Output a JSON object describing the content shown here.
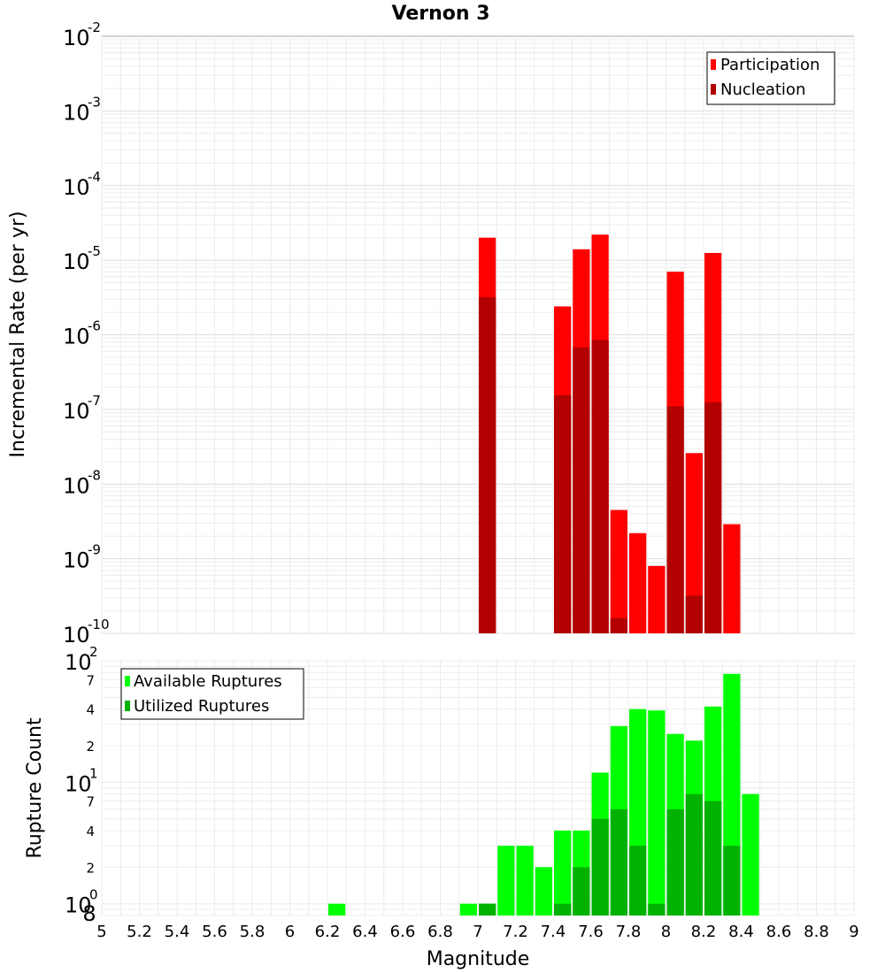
{
  "title": "Vernon 3",
  "chart_data": [
    {
      "type": "bar",
      "scale": "log",
      "ylabel": "Incremental Rate (per yr)",
      "xlim": [
        5,
        9
      ],
      "ylim": [
        1e-10,
        0.01
      ],
      "y_decade_ticks": [
        {
          "base": "10",
          "exp": "-10",
          "value": 1e-10
        },
        {
          "base": "10",
          "exp": "-9",
          "value": 1e-09
        },
        {
          "base": "10",
          "exp": "-8",
          "value": 1e-08
        },
        {
          "base": "10",
          "exp": "-7",
          "value": 1e-07
        },
        {
          "base": "10",
          "exp": "-6",
          "value": 1e-06
        },
        {
          "base": "10",
          "exp": "-5",
          "value": 1e-05
        },
        {
          "base": "10",
          "exp": "-4",
          "value": 0.0001
        },
        {
          "base": "10",
          "exp": "-3",
          "value": 0.001
        },
        {
          "base": "10",
          "exp": "-2",
          "value": 0.01
        }
      ],
      "legend": {
        "placement": "top-right",
        "entries": [
          {
            "label": "Participation",
            "color": "#ff0000"
          },
          {
            "label": "Nucleation",
            "color": "#b20000"
          }
        ]
      },
      "series": [
        {
          "name": "Participation",
          "color": "#ff0000",
          "x": [
            7.05,
            7.45,
            7.55,
            7.65,
            7.75,
            7.85,
            7.95,
            8.05,
            8.15,
            8.25,
            8.35
          ],
          "values": [
            2e-05,
            2.4e-06,
            1.4e-05,
            2.2e-05,
            4.5e-09,
            2.2e-09,
            8e-10,
            7e-06,
            2.6e-08,
            1.25e-05,
            2.9e-09
          ]
        },
        {
          "name": "Nucleation",
          "color": "#b20000",
          "x": [
            7.05,
            7.45,
            7.55,
            7.65,
            7.75,
            8.05,
            8.15,
            8.25
          ],
          "values": [
            3.2e-06,
            1.55e-07,
            6.8e-07,
            8.5e-07,
            1.6e-10,
            1.1e-07,
            3.2e-10,
            1.25e-07
          ]
        }
      ]
    },
    {
      "type": "bar",
      "scale": "log",
      "ylabel": "Rupture Count",
      "xlabel": "Magnitude",
      "xlim": [
        5,
        9
      ],
      "ylim": [
        0.8,
        100
      ],
      "x_ticks": [
        "5",
        "5.2",
        "5.4",
        "5.6",
        "5.8",
        "6",
        "6.2",
        "6.4",
        "6.6",
        "6.8",
        "7",
        "7.2",
        "7.4",
        "7.6",
        "7.8",
        "8",
        "8.2",
        "8.4",
        "8.6",
        "8.8",
        "9"
      ],
      "y_decade_ticks": [
        {
          "base": "10",
          "exp": "0",
          "value": 1
        },
        {
          "base": "10",
          "exp": "1",
          "value": 10
        },
        {
          "base": "10",
          "exp": "2",
          "value": 100
        }
      ],
      "y_minor_labels": [
        {
          "label": "8",
          "value": 0.8
        },
        {
          "label": "2",
          "value": 2
        },
        {
          "label": "4",
          "value": 4
        },
        {
          "label": "7",
          "value": 7
        },
        {
          "label": "2",
          "value": 20
        },
        {
          "label": "4",
          "value": 40
        },
        {
          "label": "7",
          "value": 70
        }
      ],
      "legend": {
        "placement": "top-left",
        "entries": [
          {
            "label": "Available Ruptures",
            "color": "#00ff00"
          },
          {
            "label": "Utilized Ruptures",
            "color": "#00b200"
          }
        ]
      },
      "series": [
        {
          "name": "Available Ruptures",
          "color": "#00ff00",
          "x": [
            6.25,
            6.95,
            7.05,
            7.15,
            7.25,
            7.35,
            7.45,
            7.55,
            7.65,
            7.75,
            7.85,
            7.95,
            8.05,
            8.15,
            8.25,
            8.35,
            8.45
          ],
          "values": [
            1,
            1,
            1,
            3,
            3,
            2,
            4,
            4,
            12,
            29,
            40,
            39,
            25,
            22,
            42,
            78,
            8
          ]
        },
        {
          "name": "Utilized Ruptures",
          "color": "#00b200",
          "x": [
            7.05,
            7.45,
            7.55,
            7.65,
            7.75,
            7.85,
            7.95,
            8.05,
            8.15,
            8.25,
            8.35
          ],
          "values": [
            1,
            1,
            2,
            5,
            6,
            3,
            1,
            6,
            8,
            7,
            3
          ]
        }
      ]
    }
  ]
}
